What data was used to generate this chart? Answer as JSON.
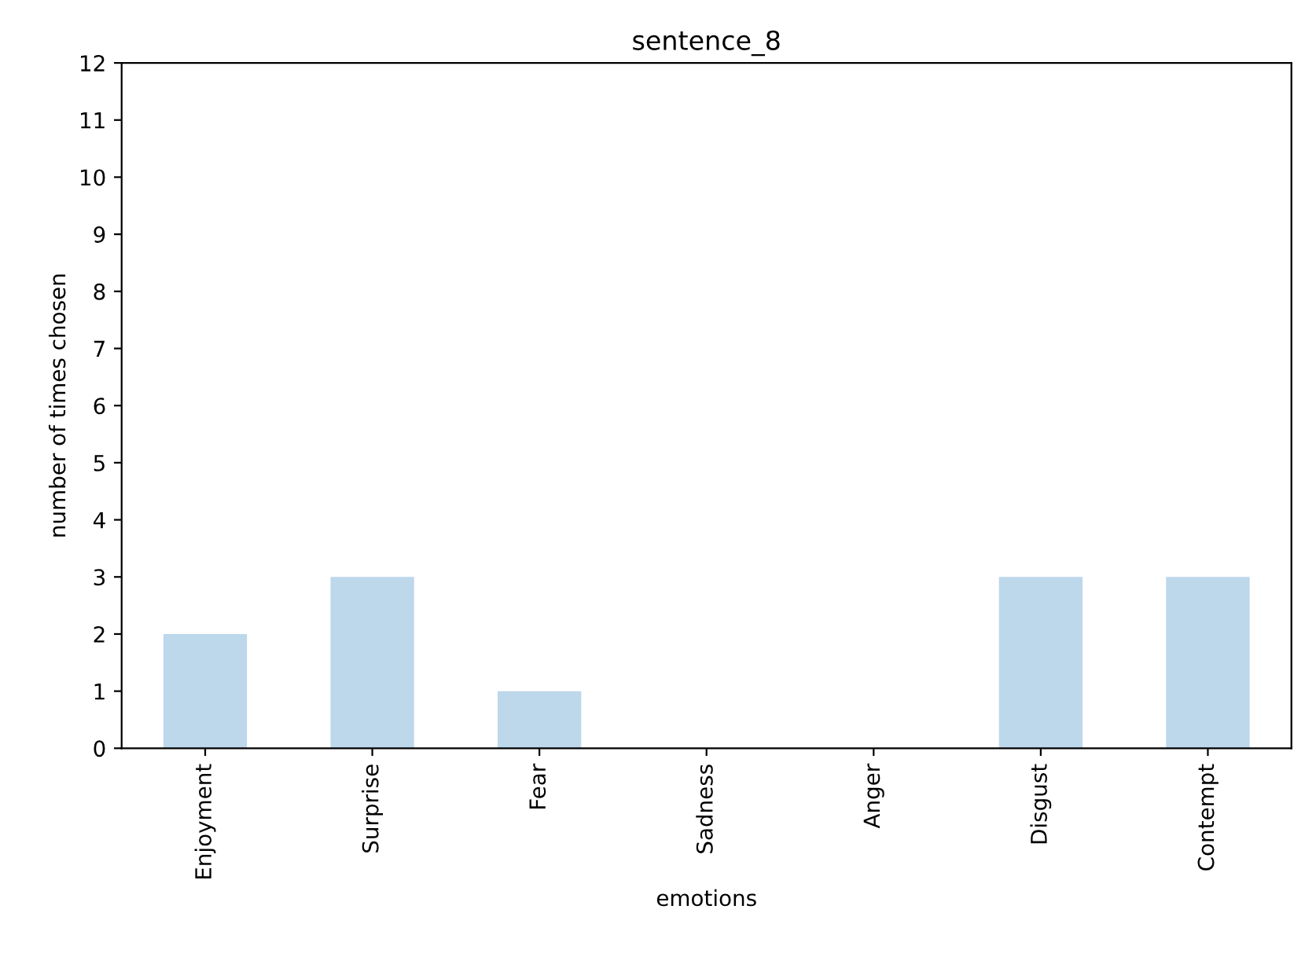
{
  "chart_data": {
    "type": "bar",
    "title": "sentence_8",
    "xlabel": "emotions",
    "ylabel": "number of times chosen",
    "categories": [
      "Enjoyment",
      "Surprise",
      "Fear",
      "Sadness",
      "Anger",
      "Disgust",
      "Contempt"
    ],
    "values": [
      2,
      3,
      1,
      0,
      0,
      3,
      3
    ],
    "color": "#bdd7eb",
    "ylim": [
      0,
      12
    ],
    "yticks": [
      0,
      1,
      2,
      3,
      4,
      5,
      6,
      7,
      8,
      9,
      10,
      11,
      12
    ],
    "grid": false,
    "legend": false
  }
}
